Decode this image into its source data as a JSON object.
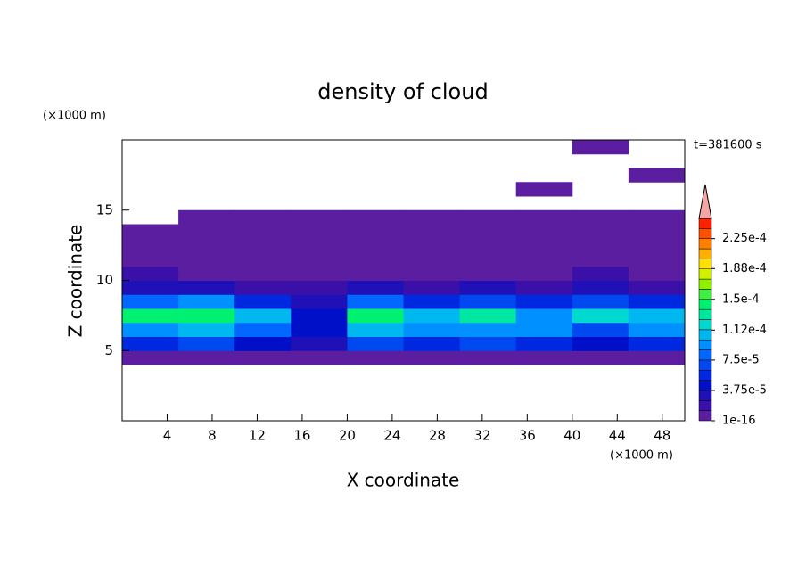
{
  "chart_data": {
    "type": "contour",
    "title": "density of cloud",
    "x_label": "X coordinate",
    "y_label": "Z coordinate",
    "x_unit": "(×1000 m)",
    "y_unit": "(×1000 m)",
    "annotation": "t=381600 s",
    "xlim": [
      0,
      50
    ],
    "ylim": [
      0,
      20
    ],
    "xticks": [
      4,
      8,
      12,
      16,
      20,
      24,
      28,
      32,
      36,
      40,
      44,
      48
    ],
    "yticks": [
      5,
      10,
      15
    ],
    "clim": [
      1e-16,
      0.00025
    ],
    "cticks": [
      {
        "value": 1e-16,
        "label": "1e-16"
      },
      {
        "value": 3.75e-05,
        "label": "3.75e-5"
      },
      {
        "value": 7.5e-05,
        "label": "7.5e-5"
      },
      {
        "value": 0.000112,
        "label": "1.12e-4"
      },
      {
        "value": 0.00015,
        "label": "1.5e-4"
      },
      {
        "value": 0.000188,
        "label": "1.88e-4"
      },
      {
        "value": 0.000225,
        "label": "2.25e-4"
      }
    ],
    "colors": [
      "#5b1ea0",
      "#3a10a8",
      "#2010b8",
      "#0010c8",
      "#0028e0",
      "#0048f0",
      "#0068ff",
      "#0090ff",
      "#00b8f0",
      "#00d8d0",
      "#00e8a0",
      "#00f070",
      "#40f040",
      "#90f000",
      "#d0f000",
      "#ffe000",
      "#ffb000",
      "#ff8000",
      "#ff5000",
      "#ff2000"
    ],
    "over_color": "#f4a6a6",
    "field": [
      [
        null,
        null,
        null,
        null,
        null,
        null,
        null,
        null,
        null,
        null
      ],
      [
        null,
        null,
        null,
        null,
        null,
        null,
        null,
        null,
        null,
        null
      ],
      [
        null,
        null,
        null,
        null,
        null,
        null,
        null,
        null,
        null,
        null
      ],
      [
        null,
        null,
        null,
        null,
        null,
        null,
        null,
        null,
        null,
        null
      ],
      [
        1e-06,
        1e-06,
        1e-06,
        1e-06,
        1e-06,
        1e-06,
        1e-06,
        1e-06,
        1e-06,
        1e-06
      ],
      [
        6e-05,
        7e-05,
        5e-05,
        3e-05,
        7e-05,
        6e-05,
        7e-05,
        6e-05,
        5e-05,
        6e-05
      ],
      [
        0.0001,
        0.00011,
        8e-05,
        4e-05,
        0.00011,
        9e-05,
        0.0001,
        9e-05,
        7e-05,
        9e-05
      ],
      [
        0.00014,
        0.00015,
        0.00011,
        5e-05,
        0.00015,
        0.00011,
        0.00013,
        0.0001,
        0.00012,
        0.00011
      ],
      [
        8e-05,
        9e-05,
        6e-05,
        3e-05,
        8e-05,
        6e-05,
        7e-05,
        6e-05,
        7e-05,
        6e-05
      ],
      [
        3e-05,
        3e-05,
        2.5e-05,
        1.5e-05,
        3e-05,
        2.5e-05,
        3e-05,
        2.5e-05,
        3e-05,
        2.5e-05
      ],
      [
        1.5e-05,
        1.2e-05,
        1e-05,
        8e-06,
        1.2e-05,
        1e-05,
        1.2e-05,
        1e-05,
        1.5e-05,
        1.2e-05
      ],
      [
        5e-06,
        5e-06,
        5e-06,
        5e-06,
        5e-06,
        5e-06,
        5e-06,
        5e-06,
        5e-06,
        5e-06
      ],
      [
        5e-06,
        5e-06,
        5e-06,
        5e-06,
        5e-06,
        5e-06,
        5e-06,
        5e-06,
        5e-06,
        5e-06
      ],
      [
        3e-06,
        3e-06,
        3e-06,
        3e-06,
        3e-06,
        3e-06,
        3e-06,
        3e-06,
        3e-06,
        3e-06
      ],
      [
        null,
        2e-06,
        2e-06,
        2e-06,
        2e-06,
        2e-06,
        2e-06,
        2e-06,
        2e-06,
        2e-06
      ],
      [
        null,
        null,
        null,
        null,
        null,
        null,
        null,
        null,
        null,
        null
      ],
      [
        null,
        null,
        null,
        null,
        null,
        null,
        null,
        2e-06,
        null,
        null
      ],
      [
        null,
        null,
        null,
        null,
        null,
        null,
        null,
        null,
        null,
        2e-06
      ],
      [
        null,
        null,
        null,
        null,
        null,
        null,
        null,
        null,
        null,
        null
      ],
      [
        null,
        null,
        null,
        null,
        null,
        null,
        null,
        null,
        2e-06,
        null
      ]
    ]
  }
}
